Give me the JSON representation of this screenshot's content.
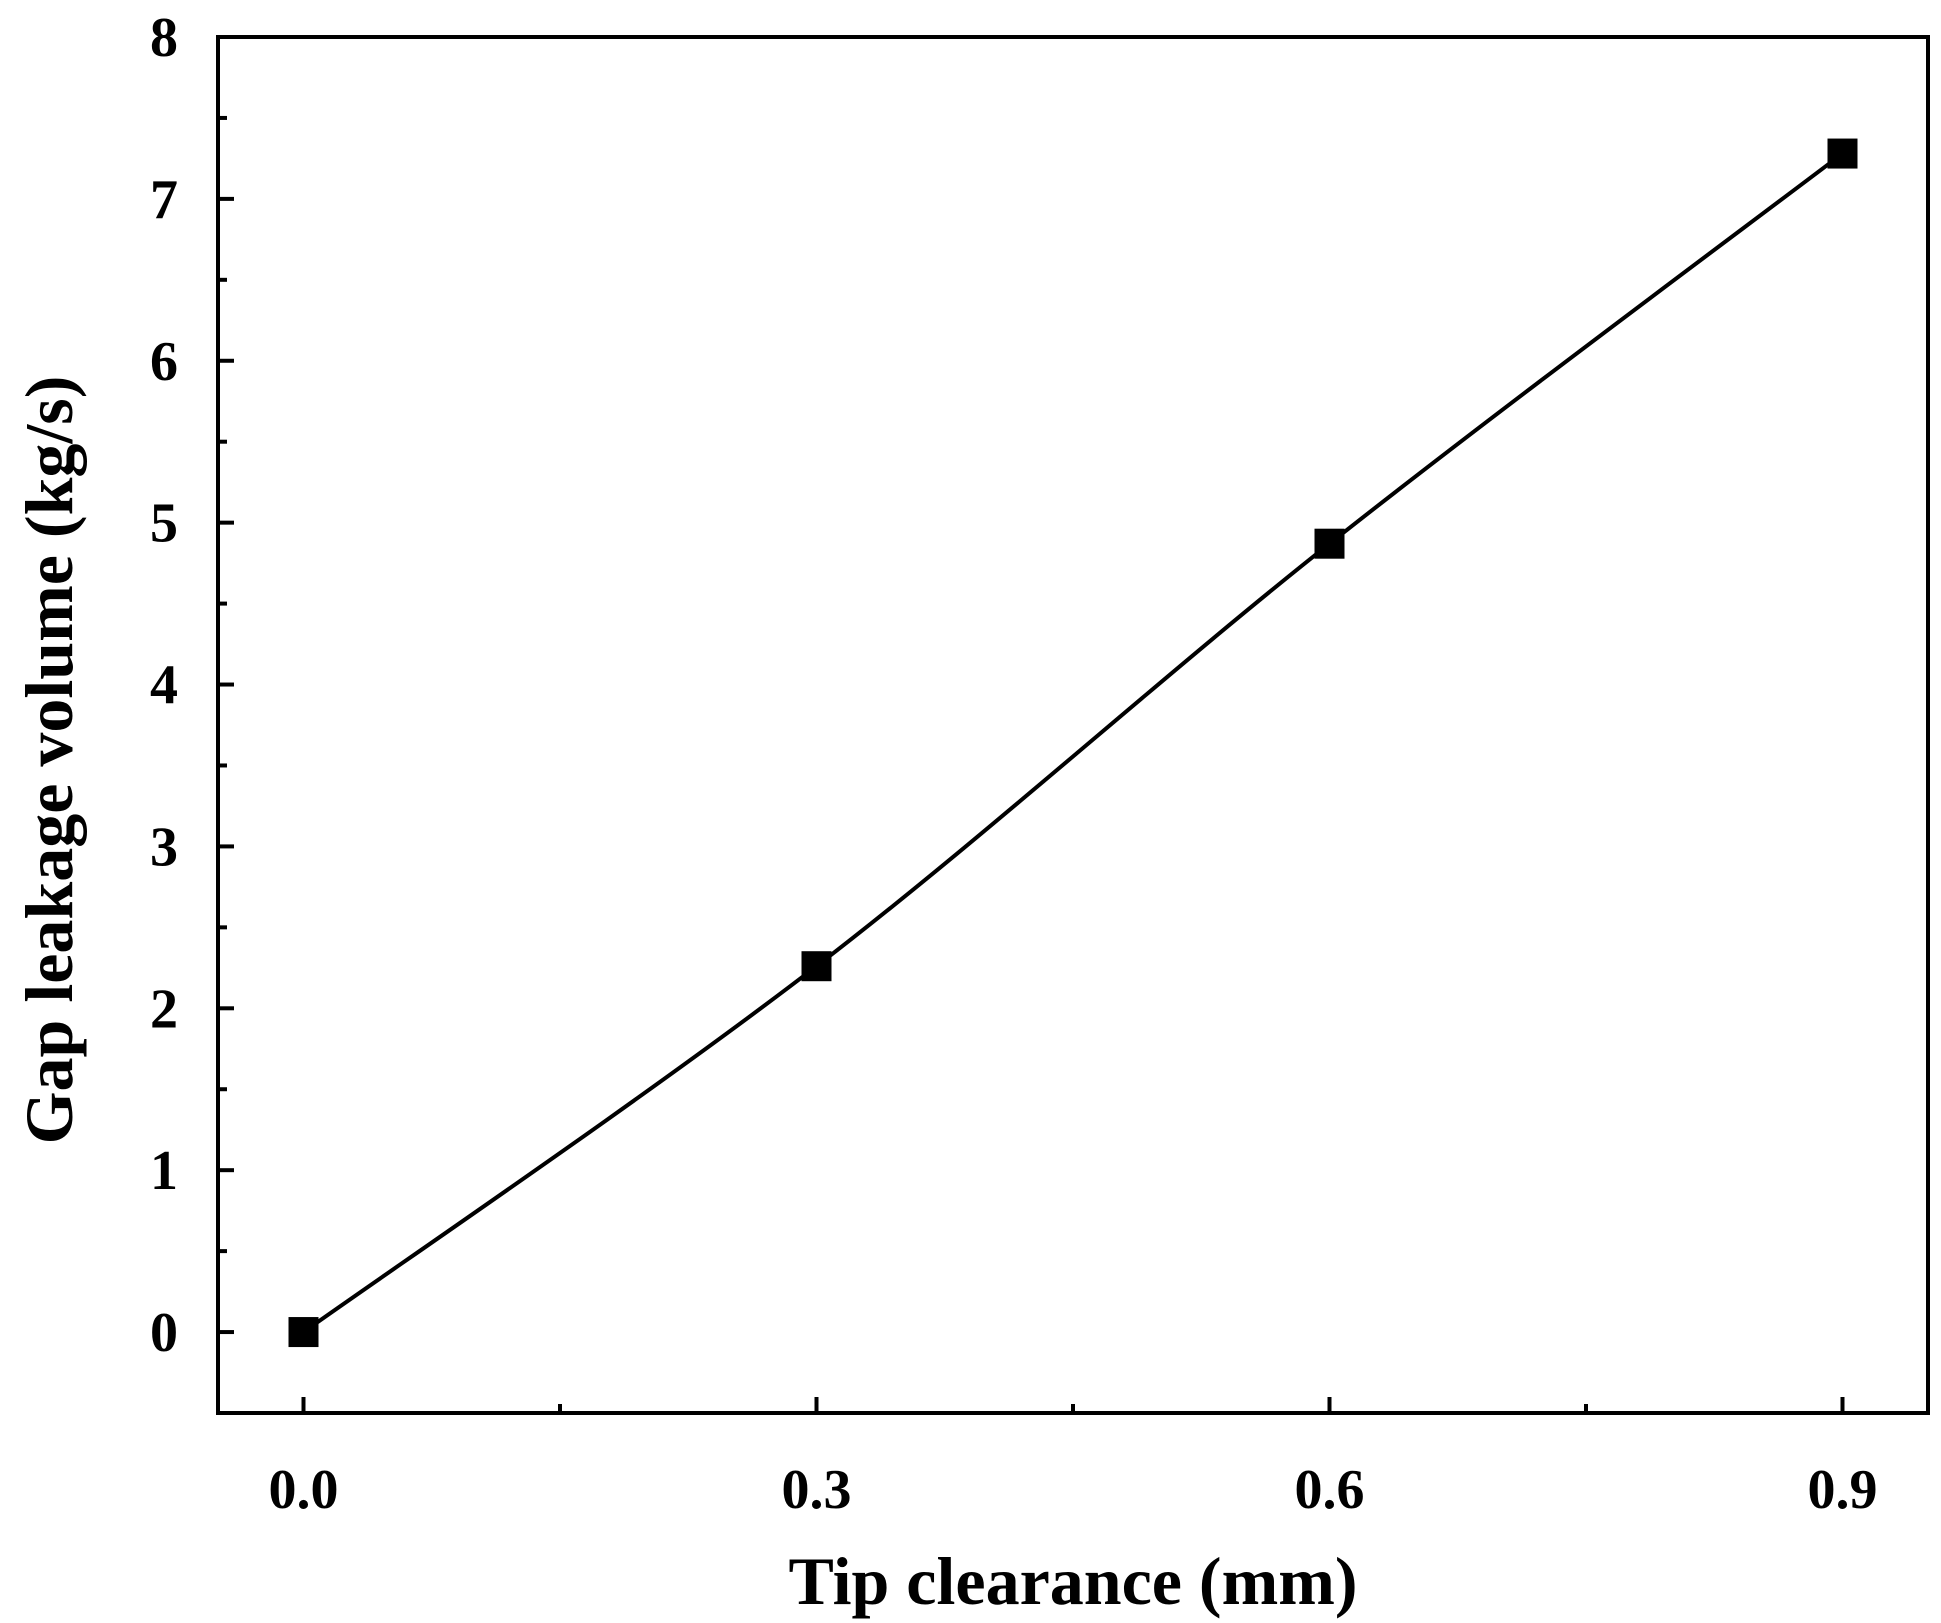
{
  "chart_data": {
    "type": "line",
    "title": "",
    "xlabel": "Tip clearance (mm)",
    "ylabel": "Gap leakage volume (kg/s)",
    "xlim": [
      -0.05,
      0.95
    ],
    "ylim": [
      -0.5,
      8
    ],
    "x_ticks": [
      0.0,
      0.3,
      0.6,
      0.9
    ],
    "x_tick_labels": [
      "0.0",
      "0.3",
      "0.6",
      "0.9"
    ],
    "x_minor_ticks": [
      0.15,
      0.45,
      0.75
    ],
    "y_ticks": [
      0,
      1,
      2,
      3,
      4,
      5,
      6,
      7,
      8
    ],
    "y_tick_labels": [
      "0",
      "1",
      "2",
      "3",
      "4",
      "5",
      "6",
      "7",
      "8"
    ],
    "y_minor_ticks": [
      0.5,
      1.5,
      2.5,
      3.5,
      4.5,
      5.5,
      6.5,
      7.5
    ],
    "grid": false,
    "legend": "none",
    "series": [
      {
        "x": [
          0.0,
          0.3,
          0.6,
          0.9
        ],
        "values": [
          0.0,
          2.26,
          4.87,
          7.28
        ],
        "marker": "square",
        "line": "smooth",
        "color": "#000000"
      }
    ]
  }
}
